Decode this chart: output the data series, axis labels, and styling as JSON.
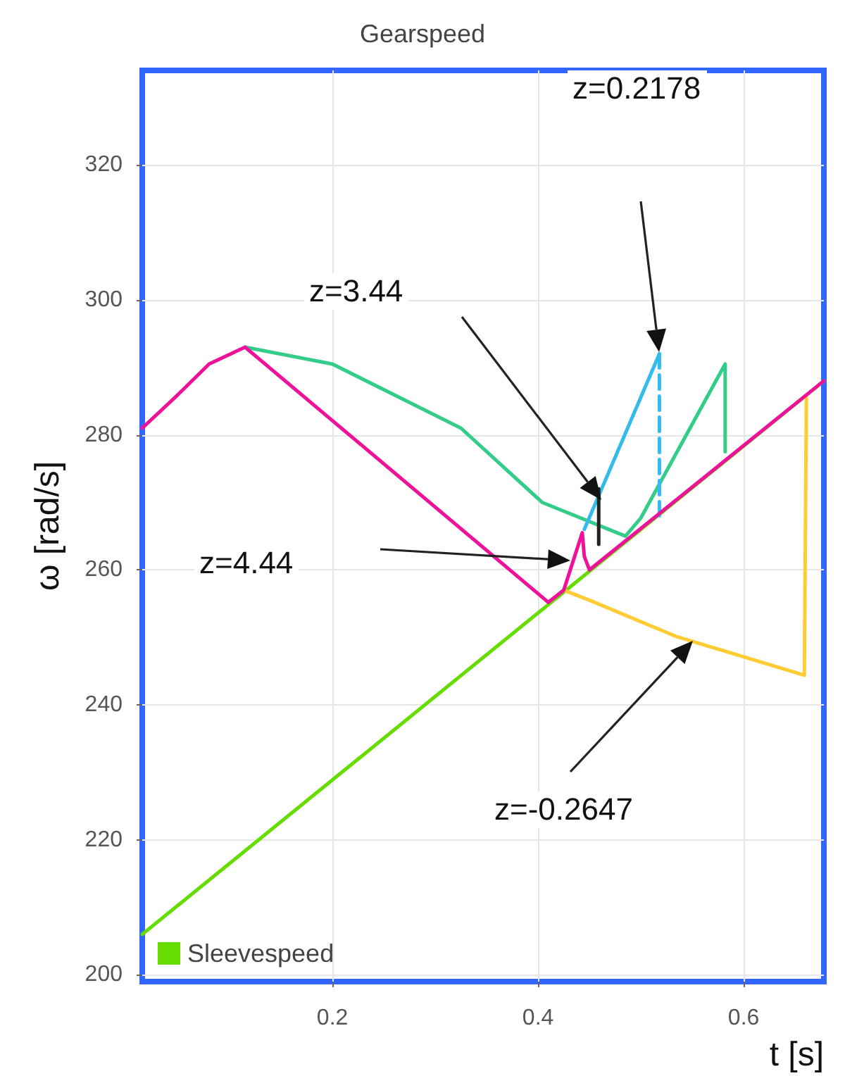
{
  "chart_data": {
    "type": "line",
    "title": "Gearspeed",
    "xlabel": "t [s]",
    "ylabel": "ω [rad/s]",
    "xlim": [
      0.015,
      0.678
    ],
    "xticks": [
      0.2,
      0.4,
      0.6
    ],
    "ylim": [
      199,
      334
    ],
    "yticks": [
      200,
      220,
      240,
      260,
      280,
      300,
      320
    ],
    "grid": true,
    "legend": "bottom left",
    "marker": "none",
    "series": [
      {
        "name": "Sleevespeed",
        "color": "#66dd00",
        "x": [
          0.015,
          0.678
        ],
        "values": [
          206,
          288
        ]
      },
      {
        "color": "#33cc88",
        "x": [
          0.115,
          0.2,
          0.325,
          0.404,
          0.485,
          0.5,
          0.582,
          0.582
        ],
        "values": [
          293,
          290.5,
          281,
          270,
          265,
          267.7,
          290.5,
          277.5
        ]
      },
      {
        "color": "#ffcc33",
        "x": [
          0.425,
          0.45,
          0.535,
          0.659,
          0.661
        ],
        "values": [
          257,
          255.5,
          250.1,
          244.4,
          285.8
        ]
      },
      {
        "color": "#33bbee",
        "x": [
          0.445,
          0.518
        ],
        "values": [
          266,
          292
        ]
      },
      {
        "color": "#33bbee",
        "line_style": "dashed",
        "x": [
          0.518,
          0.518
        ],
        "values": [
          292,
          268
        ]
      },
      {
        "color": "#222222",
        "x": [
          0.459,
          0.459
        ],
        "values": [
          272,
          263.8
        ]
      },
      {
        "color": "#ee1199",
        "x": [
          0.015,
          0.05,
          0.08,
          0.115,
          0.41,
          0.425,
          0.443,
          0.445,
          0.45,
          0.678
        ],
        "values": [
          281,
          286,
          290.5,
          293,
          255.2,
          257,
          265.5,
          262,
          260,
          288
        ]
      }
    ],
    "annotations": [
      "z=0.2178",
      "z=3.44",
      "z=4.44",
      "z=-0.2647"
    ]
  }
}
